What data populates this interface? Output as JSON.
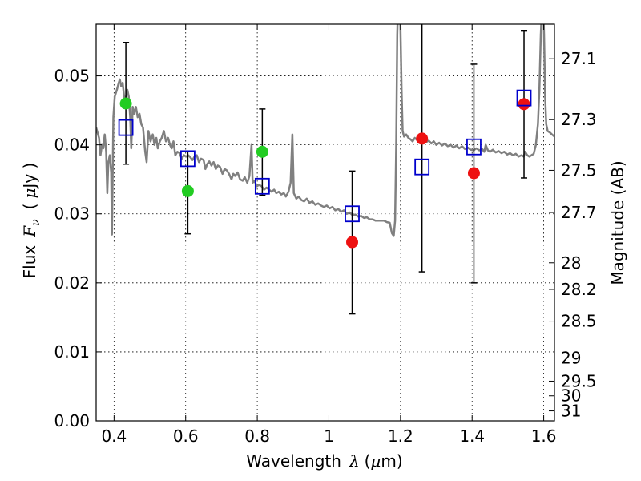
{
  "chart_data": {
    "type": "scatter",
    "title": "",
    "xlabel": {
      "prefix": "Wavelength",
      "symbol": "λ",
      "unit_open": "(",
      "unit_mu": "μ",
      "unit_rest": "m)"
    },
    "ylabel": {
      "prefix": "Flux",
      "symbol": "F",
      "subscript": "ν",
      "unit_open": "(",
      "unit_mu": "μ",
      "unit_rest": "Jy )"
    },
    "y2label": "Magnitude (AB)",
    "xlim": [
      0.35,
      1.63
    ],
    "ylim": [
      0.0,
      0.0575
    ],
    "grid": true,
    "x_ticks": [
      {
        "v": 0.4,
        "label": "0.4"
      },
      {
        "v": 0.6,
        "label": "0.6"
      },
      {
        "v": 0.8,
        "label": "0.8"
      },
      {
        "v": 1.0,
        "label": "1"
      },
      {
        "v": 1.2,
        "label": "1.2"
      },
      {
        "v": 1.4,
        "label": "1.4"
      },
      {
        "v": 1.6,
        "label": "1.6"
      }
    ],
    "y_ticks": [
      {
        "v": 0.0,
        "label": "0.00"
      },
      {
        "v": 0.01,
        "label": "0.01"
      },
      {
        "v": 0.02,
        "label": "0.02"
      },
      {
        "v": 0.03,
        "label": "0.03"
      },
      {
        "v": 0.04,
        "label": "0.04"
      },
      {
        "v": 0.05,
        "label": "0.05"
      }
    ],
    "y2_ticks": [
      {
        "mag": 27.1,
        "label": "27.1"
      },
      {
        "mag": 27.3,
        "label": "27.3"
      },
      {
        "mag": 27.5,
        "label": "27.5"
      },
      {
        "mag": 27.7,
        "label": "27.7"
      },
      {
        "mag": 28.0,
        "label": "28"
      },
      {
        "mag": 28.2,
        "label": "28.2"
      },
      {
        "mag": 28.5,
        "label": "28.5"
      },
      {
        "mag": 29.0,
        "label": "29"
      },
      {
        "mag": 29.5,
        "label": "29.5"
      },
      {
        "mag": 30.0,
        "label": "30"
      },
      {
        "mag": 31.0,
        "label": "31"
      }
    ],
    "series": [
      {
        "kind": "spectrum",
        "color": "#808080",
        "points": [
          [
            0.35,
            0.0425
          ],
          [
            0.358,
            0.041
          ],
          [
            0.362,
            0.0385
          ],
          [
            0.366,
            0.04
          ],
          [
            0.37,
            0.0395
          ],
          [
            0.374,
            0.0415
          ],
          [
            0.378,
            0.039
          ],
          [
            0.381,
            0.033
          ],
          [
            0.384,
            0.0375
          ],
          [
            0.388,
            0.0385
          ],
          [
            0.392,
            0.036
          ],
          [
            0.394,
            0.027
          ],
          [
            0.398,
            0.044
          ],
          [
            0.402,
            0.047
          ],
          [
            0.408,
            0.048
          ],
          [
            0.413,
            0.049
          ],
          [
            0.416,
            0.0495
          ],
          [
            0.42,
            0.0485
          ],
          [
            0.424,
            0.049
          ],
          [
            0.428,
            0.047
          ],
          [
            0.432,
            0.0465
          ],
          [
            0.437,
            0.048
          ],
          [
            0.441,
            0.047
          ],
          [
            0.445,
            0.044
          ],
          [
            0.448,
            0.0395
          ],
          [
            0.452,
            0.0455
          ],
          [
            0.456,
            0.0445
          ],
          [
            0.461,
            0.0455
          ],
          [
            0.466,
            0.044
          ],
          [
            0.471,
            0.0445
          ],
          [
            0.476,
            0.043
          ],
          [
            0.481,
            0.0425
          ],
          [
            0.487,
            0.039
          ],
          [
            0.491,
            0.0375
          ],
          [
            0.496,
            0.042
          ],
          [
            0.502,
            0.0405
          ],
          [
            0.508,
            0.0415
          ],
          [
            0.513,
            0.04
          ],
          [
            0.518,
            0.041
          ],
          [
            0.522,
            0.0395
          ],
          [
            0.528,
            0.0405
          ],
          [
            0.533,
            0.041
          ],
          [
            0.539,
            0.042
          ],
          [
            0.545,
            0.0405
          ],
          [
            0.551,
            0.041
          ],
          [
            0.556,
            0.04
          ],
          [
            0.561,
            0.0395
          ],
          [
            0.566,
            0.0405
          ],
          [
            0.571,
            0.0385
          ],
          [
            0.577,
            0.039
          ],
          [
            0.583,
            0.0388
          ],
          [
            0.589,
            0.038
          ],
          [
            0.595,
            0.0385
          ],
          [
            0.601,
            0.0383
          ],
          [
            0.607,
            0.0385
          ],
          [
            0.613,
            0.0382
          ],
          [
            0.619,
            0.0378
          ],
          [
            0.626,
            0.0384
          ],
          [
            0.631,
            0.0385
          ],
          [
            0.637,
            0.0375
          ],
          [
            0.643,
            0.038
          ],
          [
            0.65,
            0.0378
          ],
          [
            0.655,
            0.0365
          ],
          [
            0.66,
            0.0372
          ],
          [
            0.666,
            0.0376
          ],
          [
            0.672,
            0.037
          ],
          [
            0.678,
            0.0375
          ],
          [
            0.684,
            0.0365
          ],
          [
            0.69,
            0.037
          ],
          [
            0.696,
            0.0368
          ],
          [
            0.703,
            0.0358
          ],
          [
            0.709,
            0.0365
          ],
          [
            0.715,
            0.0363
          ],
          [
            0.721,
            0.0358
          ],
          [
            0.728,
            0.035
          ],
          [
            0.733,
            0.0358
          ],
          [
            0.738,
            0.0355
          ],
          [
            0.745,
            0.036
          ],
          [
            0.752,
            0.035
          ],
          [
            0.759,
            0.0348
          ],
          [
            0.765,
            0.0353
          ],
          [
            0.772,
            0.0345
          ],
          [
            0.778,
            0.0355
          ],
          [
            0.784,
            0.04
          ],
          [
            0.787,
            0.0345
          ],
          [
            0.792,
            0.0348
          ],
          [
            0.799,
            0.034
          ],
          [
            0.805,
            0.0342
          ],
          [
            0.812,
            0.034
          ],
          [
            0.819,
            0.0335
          ],
          [
            0.826,
            0.0338
          ],
          [
            0.833,
            0.0335
          ],
          [
            0.84,
            0.0332
          ],
          [
            0.847,
            0.0335
          ],
          [
            0.853,
            0.033
          ],
          [
            0.86,
            0.0332
          ],
          [
            0.867,
            0.0328
          ],
          [
            0.874,
            0.033
          ],
          [
            0.88,
            0.0325
          ],
          [
            0.887,
            0.0332
          ],
          [
            0.893,
            0.0345
          ],
          [
            0.898,
            0.0415
          ],
          [
            0.902,
            0.033
          ],
          [
            0.909,
            0.0322
          ],
          [
            0.916,
            0.0325
          ],
          [
            0.923,
            0.032
          ],
          [
            0.931,
            0.0318
          ],
          [
            0.938,
            0.0322
          ],
          [
            0.946,
            0.0316
          ],
          [
            0.954,
            0.0318
          ],
          [
            0.962,
            0.0313
          ],
          [
            0.97,
            0.0315
          ],
          [
            0.978,
            0.0312
          ],
          [
            0.986,
            0.031
          ],
          [
            0.994,
            0.0312
          ],
          [
            1.002,
            0.0308
          ],
          [
            1.01,
            0.031
          ],
          [
            1.018,
            0.0305
          ],
          [
            1.026,
            0.0307
          ],
          [
            1.034,
            0.0303
          ],
          [
            1.042,
            0.0305
          ],
          [
            1.05,
            0.03
          ],
          [
            1.058,
            0.0302
          ],
          [
            1.066,
            0.0298
          ],
          [
            1.074,
            0.0299
          ],
          [
            1.082,
            0.0296
          ],
          [
            1.09,
            0.0297
          ],
          [
            1.098,
            0.0294
          ],
          [
            1.106,
            0.0295
          ],
          [
            1.114,
            0.0292
          ],
          [
            1.122,
            0.0292
          ],
          [
            1.13,
            0.029
          ],
          [
            1.138,
            0.029
          ],
          [
            1.146,
            0.029
          ],
          [
            1.154,
            0.029
          ],
          [
            1.162,
            0.0288
          ],
          [
            1.17,
            0.0287
          ],
          [
            1.176,
            0.0272
          ],
          [
            1.181,
            0.0268
          ],
          [
            1.185,
            0.029
          ],
          [
            1.188,
            0.04
          ],
          [
            1.191,
            0.056
          ],
          [
            1.193,
            0.06
          ],
          [
            1.198,
            0.06
          ],
          [
            1.2,
            0.057
          ],
          [
            1.203,
            0.048
          ],
          [
            1.206,
            0.042
          ],
          [
            1.21,
            0.0412
          ],
          [
            1.216,
            0.0415
          ],
          [
            1.222,
            0.041
          ],
          [
            1.228,
            0.0408
          ],
          [
            1.234,
            0.0405
          ],
          [
            1.24,
            0.041
          ],
          [
            1.246,
            0.0407
          ],
          [
            1.252,
            0.0409
          ],
          [
            1.258,
            0.0406
          ],
          [
            1.265,
            0.0408
          ],
          [
            1.272,
            0.0404
          ],
          [
            1.279,
            0.0406
          ],
          [
            1.286,
            0.0402
          ],
          [
            1.293,
            0.0405
          ],
          [
            1.3,
            0.04
          ],
          [
            1.308,
            0.0403
          ],
          [
            1.316,
            0.0399
          ],
          [
            1.324,
            0.0402
          ],
          [
            1.332,
            0.0398
          ],
          [
            1.34,
            0.04
          ],
          [
            1.348,
            0.0396
          ],
          [
            1.356,
            0.0399
          ],
          [
            1.364,
            0.0395
          ],
          [
            1.372,
            0.0398
          ],
          [
            1.38,
            0.0394
          ],
          [
            1.388,
            0.0396
          ],
          [
            1.396,
            0.0393
          ],
          [
            1.404,
            0.0392
          ],
          [
            1.412,
            0.0395
          ],
          [
            1.42,
            0.0392
          ],
          [
            1.428,
            0.0394
          ],
          [
            1.434,
            0.039
          ],
          [
            1.438,
            0.04
          ],
          [
            1.444,
            0.0392
          ],
          [
            1.45,
            0.039
          ],
          [
            1.458,
            0.0393
          ],
          [
            1.466,
            0.0389
          ],
          [
            1.474,
            0.0391
          ],
          [
            1.482,
            0.0388
          ],
          [
            1.49,
            0.039
          ],
          [
            1.498,
            0.0386
          ],
          [
            1.506,
            0.0388
          ],
          [
            1.514,
            0.0385
          ],
          [
            1.522,
            0.0387
          ],
          [
            1.53,
            0.0383
          ],
          [
            1.538,
            0.0385
          ],
          [
            1.544,
            0.0383
          ],
          [
            1.548,
            0.039
          ],
          [
            1.554,
            0.0385
          ],
          [
            1.56,
            0.0383
          ],
          [
            1.566,
            0.0385
          ],
          [
            1.572,
            0.0387
          ],
          [
            1.578,
            0.04
          ],
          [
            1.584,
            0.043
          ],
          [
            1.588,
            0.048
          ],
          [
            1.592,
            0.056
          ],
          [
            1.595,
            0.06
          ],
          [
            1.599,
            0.06
          ],
          [
            1.601,
            0.056
          ],
          [
            1.604,
            0.047
          ],
          [
            1.607,
            0.043
          ],
          [
            1.611,
            0.042
          ],
          [
            1.617,
            0.0418
          ],
          [
            1.623,
            0.0415
          ],
          [
            1.63,
            0.0412
          ]
        ]
      },
      {
        "kind": "errorbars",
        "color": "#000000",
        "points": [
          {
            "x": 0.433,
            "low": 0.0372,
            "high": 0.0548
          },
          {
            "x": 0.606,
            "low": 0.0271,
            "high": 0.0391
          },
          {
            "x": 0.814,
            "low": 0.0327,
            "high": 0.0452
          },
          {
            "x": 1.065,
            "low": 0.0155,
            "high": 0.0362
          },
          {
            "x": 1.26,
            "low": 0.0216,
            "high": 0.06
          },
          {
            "x": 1.405,
            "low": 0.02,
            "high": 0.0517
          },
          {
            "x": 1.545,
            "low": 0.0352,
            "high": 0.0565
          }
        ]
      },
      {
        "kind": "markers",
        "shape": "circle",
        "color": "#22cc22",
        "points": [
          [
            0.433,
            0.046
          ],
          [
            0.606,
            0.0333
          ],
          [
            0.814,
            0.039
          ]
        ]
      },
      {
        "kind": "markers",
        "shape": "circle",
        "color": "#ee1111",
        "points": [
          [
            1.065,
            0.0259
          ],
          [
            1.26,
            0.0409
          ],
          [
            1.405,
            0.0359
          ],
          [
            1.545,
            0.0459
          ]
        ]
      },
      {
        "kind": "markers",
        "shape": "square",
        "color": "#0000cc",
        "points": [
          [
            0.433,
            0.0425
          ],
          [
            0.606,
            0.038
          ],
          [
            0.814,
            0.034
          ],
          [
            1.065,
            0.03
          ],
          [
            1.26,
            0.0368
          ],
          [
            1.405,
            0.0397
          ],
          [
            1.545,
            0.0468
          ]
        ]
      }
    ]
  }
}
